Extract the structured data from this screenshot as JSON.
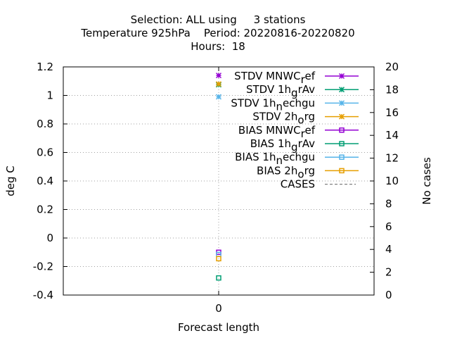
{
  "chart_data": {
    "type": "scatter",
    "title_lines": [
      "Selection: ALL using     3 stations",
      "Temperature 925hPa    Period: 20220816-20220820",
      "Hours:  18"
    ],
    "xlabel": "Forecast length",
    "ylabel": "deg C",
    "y2label": "No cases",
    "x_ticks": [
      "0"
    ],
    "y_ticks": [
      "1.2",
      "1",
      "0.8",
      "0.6",
      "0.4",
      "0.2",
      "0",
      "-0.2",
      "-0.4"
    ],
    "y2_ticks": [
      "20",
      "18",
      "16",
      "14",
      "12",
      "10",
      "8",
      "6",
      "4",
      "2",
      "0"
    ],
    "ylim": [
      -0.4,
      1.2
    ],
    "y2lim": [
      0,
      20
    ],
    "xlim": [
      -1,
      1
    ],
    "grid": true,
    "legend_position": "top-right",
    "series": [
      {
        "name": "STDV MNWC_ref",
        "base": "STDV MNWC",
        "sub": "r",
        "tail": "ef",
        "color": "#9400d3",
        "marker": "star",
        "x": [
          0
        ],
        "y": [
          1.14
        ]
      },
      {
        "name": "STDV 1h_grAv",
        "base": "STDV 1h",
        "sub": "g",
        "tail": "rAv",
        "color": "#009e73",
        "marker": "star",
        "x": [
          0
        ],
        "y": [
          1.075
        ]
      },
      {
        "name": "STDV 1h_nechgu",
        "base": "STDV 1h",
        "sub": "n",
        "tail": "echgu",
        "color": "#56b4e9",
        "marker": "star",
        "x": [
          0
        ],
        "y": [
          0.99
        ]
      },
      {
        "name": "STDV 2h_org",
        "base": "STDV 2h",
        "sub": "o",
        "tail": "rg",
        "color": "#e69f00",
        "marker": "star",
        "x": [
          0
        ],
        "y": [
          1.08
        ]
      },
      {
        "name": "BIAS MNWC_ref",
        "base": "BIAS MNWC",
        "sub": "r",
        "tail": "ef",
        "color": "#9400d3",
        "marker": "square",
        "x": [
          0
        ],
        "y": [
          -0.1
        ]
      },
      {
        "name": "BIAS 1h_grAv",
        "base": "BIAS 1h",
        "sub": "g",
        "tail": "rAv",
        "color": "#009e73",
        "marker": "square",
        "x": [
          0
        ],
        "y": [
          -0.28
        ]
      },
      {
        "name": "BIAS 1h_nechgu",
        "base": "BIAS 1h",
        "sub": "n",
        "tail": "echgu",
        "color": "#56b4e9",
        "marker": "square",
        "x": [
          0
        ],
        "y": [
          -0.115
        ]
      },
      {
        "name": "BIAS 2h_org",
        "base": "BIAS 2h",
        "sub": "o",
        "tail": "rg",
        "color": "#e69f00",
        "marker": "square",
        "x": [
          0
        ],
        "y": [
          -0.145
        ]
      },
      {
        "name": "CASES",
        "base": "CASES",
        "sub": "",
        "tail": "",
        "color": "#808080",
        "marker": "dash",
        "x": [],
        "y": []
      }
    ]
  }
}
